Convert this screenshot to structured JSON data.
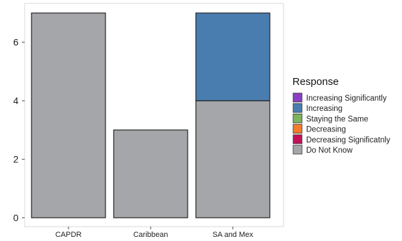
{
  "chart_data": {
    "type": "bar",
    "stacked": true,
    "categories": [
      "CAPDR",
      "Caribbean",
      "SA and Mex"
    ],
    "series": [
      {
        "name": "Increasing Significantly",
        "color": "#8B3FC4",
        "values": [
          0,
          0,
          0
        ]
      },
      {
        "name": "Increasing",
        "color": "#4A7DAF",
        "values": [
          0,
          0,
          3
        ]
      },
      {
        "name": "Staying the Same",
        "color": "#7DB35D",
        "values": [
          0,
          0,
          0
        ]
      },
      {
        "name": "Decreasing",
        "color": "#F47C2C",
        "values": [
          0,
          0,
          0
        ]
      },
      {
        "name": "Decreasing Significatnly",
        "color": "#C4115A",
        "values": [
          0,
          0,
          0
        ]
      },
      {
        "name": "Do Not Know",
        "color": "#A5A6A9",
        "values": [
          7,
          3,
          4
        ]
      }
    ],
    "legend_title": "Response",
    "legend_position": "right",
    "yticks": [
      0,
      2,
      4,
      6
    ],
    "ylim": [
      -0.3,
      7.3
    ],
    "xlabel": "",
    "ylabel": "",
    "grid": false
  }
}
